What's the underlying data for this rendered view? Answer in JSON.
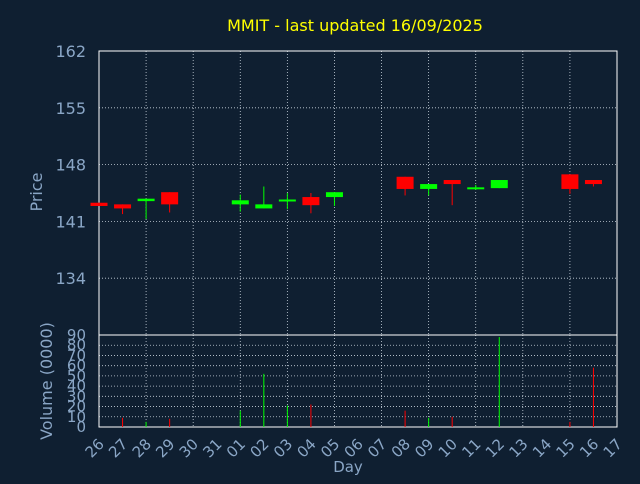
{
  "chart_data": {
    "type": "candlestick",
    "title": "MMIT - last updated 16/09/2025",
    "xlabel": "Day",
    "colors": {
      "background": "#0f1f31",
      "text": "#8aa6c6",
      "title": "#ffff00",
      "axis": "#ffffff",
      "grid": "#c8d2dc",
      "up": "#00ff00",
      "down": "#ff0000"
    },
    "days": [
      "26",
      "27",
      "28",
      "29",
      "30",
      "31",
      "01",
      "02",
      "03",
      "04",
      "05",
      "06",
      "07",
      "08",
      "09",
      "10",
      "11",
      "12",
      "13",
      "14",
      "15",
      "16",
      "17"
    ],
    "price_panel": {
      "ylabel": "Price",
      "ylim": [
        127,
        162
      ],
      "yticks": [
        134,
        141,
        148,
        155,
        162
      ],
      "candles": [
        {
          "day": "26",
          "open": 143.3,
          "close": 142.9,
          "high": 143.3,
          "low": 142.9
        },
        {
          "day": "27",
          "open": 143.1,
          "close": 142.6,
          "high": 143.1,
          "low": 141.9
        },
        {
          "day": "28",
          "open": 143.5,
          "close": 143.8,
          "high": 143.8,
          "low": 141.3
        },
        {
          "day": "29",
          "open": 144.6,
          "close": 143.1,
          "high": 144.6,
          "low": 142.1
        },
        {
          "day": "01",
          "open": 143.1,
          "close": 143.6,
          "high": 144.3,
          "low": 142.2
        },
        {
          "day": "02",
          "open": 142.6,
          "close": 143.1,
          "high": 145.3,
          "low": 142.6
        },
        {
          "day": "03",
          "open": 143.5,
          "close": 143.7,
          "high": 144.5,
          "low": 142.5
        },
        {
          "day": "04",
          "open": 144.0,
          "close": 143.0,
          "high": 144.5,
          "low": 142.0
        },
        {
          "day": "05",
          "open": 144.0,
          "close": 144.6,
          "high": 144.6,
          "low": 142.9
        },
        {
          "day": "08",
          "open": 146.5,
          "close": 145.0,
          "high": 146.5,
          "low": 144.2
        },
        {
          "day": "09",
          "open": 145.0,
          "close": 145.6,
          "high": 145.6,
          "low": 144.2
        },
        {
          "day": "10",
          "open": 146.1,
          "close": 145.6,
          "high": 146.1,
          "low": 143.0
        },
        {
          "day": "11",
          "open": 145.0,
          "close": 145.2,
          "high": 145.5,
          "low": 144.9
        },
        {
          "day": "12",
          "open": 145.1,
          "close": 146.1,
          "high": 146.1,
          "low": 145.1
        },
        {
          "day": "15",
          "open": 146.8,
          "close": 145.0,
          "high": 146.8,
          "low": 144.4
        },
        {
          "day": "16",
          "open": 146.1,
          "close": 145.6,
          "high": 146.1,
          "low": 145.3
        }
      ]
    },
    "volume_panel": {
      "ylabel": "Volume (0000)",
      "ylim": [
        0,
        90
      ],
      "yticks": [
        0,
        10,
        20,
        30,
        40,
        50,
        60,
        70,
        80,
        90
      ],
      "bars": [
        {
          "day": "27",
          "value": 9,
          "dir": "down"
        },
        {
          "day": "28",
          "value": 5,
          "dir": "up"
        },
        {
          "day": "29",
          "value": 8,
          "dir": "down"
        },
        {
          "day": "01",
          "value": 16,
          "dir": "up"
        },
        {
          "day": "02",
          "value": 52,
          "dir": "up"
        },
        {
          "day": "03",
          "value": 21,
          "dir": "up"
        },
        {
          "day": "04",
          "value": 22,
          "dir": "down"
        },
        {
          "day": "08",
          "value": 16,
          "dir": "down"
        },
        {
          "day": "09",
          "value": 9,
          "dir": "up"
        },
        {
          "day": "10",
          "value": 10,
          "dir": "down"
        },
        {
          "day": "12",
          "value": 88,
          "dir": "up"
        },
        {
          "day": "15",
          "value": 5,
          "dir": "down"
        },
        {
          "day": "16",
          "value": 58,
          "dir": "down"
        }
      ]
    }
  }
}
